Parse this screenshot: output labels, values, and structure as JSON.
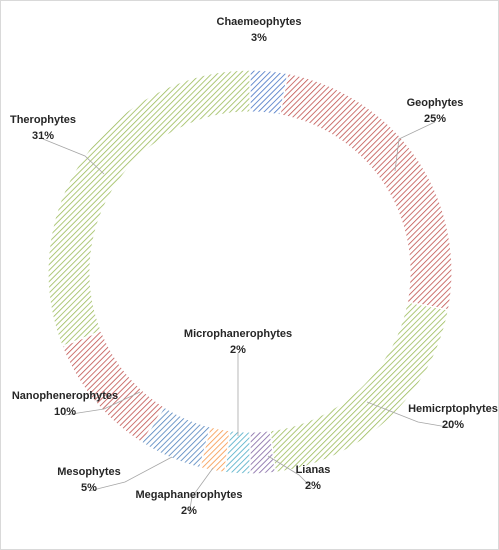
{
  "chart_data": {
    "type": "pie",
    "donut": true,
    "title": "",
    "legend": "none",
    "slices": [
      {
        "name": "Chaemeophytes",
        "percent_label": "3%",
        "value": 3.0,
        "color": "#4472c4"
      },
      {
        "name": "Geophytes",
        "percent_label": "25%",
        "value": 25.0,
        "color": "#c0504d"
      },
      {
        "name": "Hemicrptophytes",
        "percent_label": "20%",
        "value": 20.0,
        "color": "#9bbb59"
      },
      {
        "name": "Lianas",
        "percent_label": "2%",
        "value": 2.0,
        "color": "#8064a2"
      },
      {
        "name": "Microphanerophytes",
        "percent_label": "2%",
        "value": 2.0,
        "color": "#4bacc6"
      },
      {
        "name": "Megaphanerophytes",
        "percent_label": "2%",
        "value": 2.0,
        "color": "#f79646"
      },
      {
        "name": "Mesophytes",
        "percent_label": "5%",
        "value": 5.0,
        "color": "#4f81bd"
      },
      {
        "name": "Nanophenerophytes",
        "percent_label": "10%",
        "value": 10.0,
        "color": "#c0504d"
      },
      {
        "name": "Therophytes",
        "percent_label": "31%",
        "value": 31.0,
        "color": "#9bbb59"
      }
    ]
  }
}
